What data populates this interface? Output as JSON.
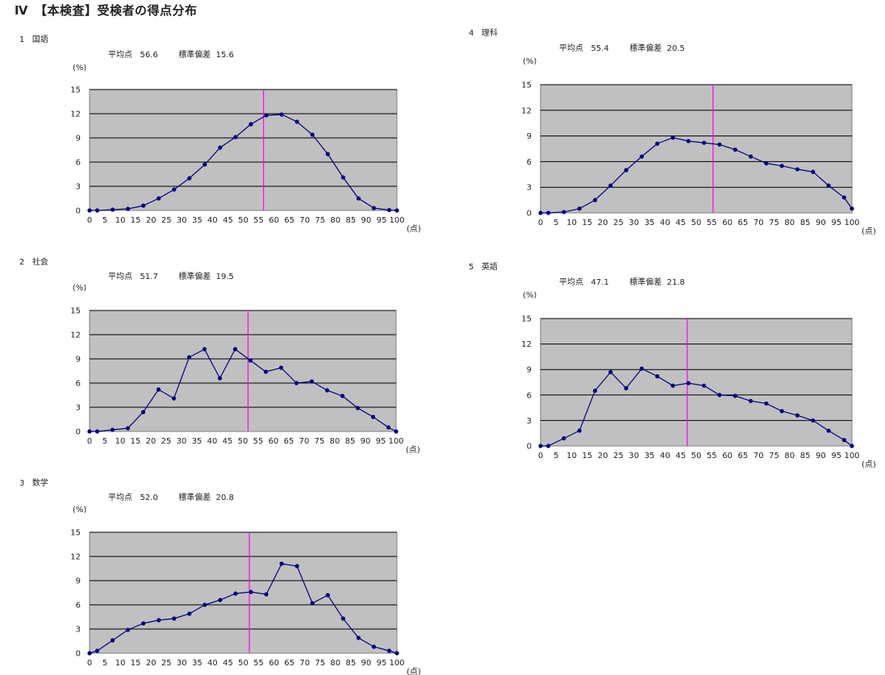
{
  "page_title": "Ⅳ　【本検査】受検者の得点分布",
  "chart_data": [
    {
      "type": "line",
      "number": "1",
      "subject": "国語",
      "average_label": "平均点",
      "average": "56.6",
      "sd_label": "標準偏差",
      "sd": "15.6",
      "ylabel": "(%)",
      "xlabel": "(点)",
      "x": [
        0,
        2.5,
        7.5,
        12.5,
        17.5,
        22.5,
        27.5,
        32.5,
        37.5,
        42.5,
        47.5,
        52.5,
        57.5,
        62.5,
        67.5,
        72.5,
        77.5,
        82.5,
        87.5,
        92.5,
        97.5,
        100
      ],
      "values": [
        0,
        0,
        0.1,
        0.2,
        0.6,
        1.5,
        2.6,
        4.0,
        5.7,
        7.8,
        9.1,
        10.7,
        11.8,
        11.9,
        11.0,
        9.4,
        7.0,
        4.1,
        1.5,
        0.3,
        0.05,
        0
      ],
      "mean_line": 56.6,
      "xlim": [
        0,
        100
      ],
      "ylim": [
        0,
        15
      ],
      "xticks": [
        0,
        5,
        10,
        15,
        20,
        25,
        30,
        35,
        40,
        45,
        50,
        55,
        60,
        65,
        70,
        75,
        80,
        85,
        90,
        95,
        100
      ],
      "yticks": [
        0,
        3,
        6,
        9,
        12,
        15
      ],
      "grid": true,
      "colors": {
        "plot_bg": "#c0c0c0",
        "line": "#000080",
        "mean": "#ff00ff"
      }
    },
    {
      "type": "line",
      "number": "2",
      "subject": "社会",
      "average_label": "平均点",
      "average": "51.7",
      "sd_label": "標準偏差",
      "sd": "19.5",
      "ylabel": "(%)",
      "xlabel": "(点)",
      "x": [
        0,
        2.5,
        7.5,
        12.5,
        17.5,
        22.5,
        27.5,
        32.5,
        37.5,
        42.5,
        47.5,
        52.5,
        57.5,
        62.5,
        67.5,
        72.5,
        77.5,
        82.5,
        87.5,
        92.5,
        97.5,
        100
      ],
      "values": [
        0,
        0,
        0.2,
        0.4,
        2.4,
        5.2,
        4.1,
        9.2,
        10.2,
        6.6,
        10.2,
        8.8,
        7.4,
        7.9,
        6.0,
        6.2,
        5.1,
        4.4,
        2.9,
        1.8,
        0.5,
        0
      ],
      "mean_line": 51.7,
      "xlim": [
        0,
        100
      ],
      "ylim": [
        0,
        15
      ],
      "xticks": [
        0,
        5,
        10,
        15,
        20,
        25,
        30,
        35,
        40,
        45,
        50,
        55,
        60,
        65,
        70,
        75,
        80,
        85,
        90,
        95,
        100
      ],
      "yticks": [
        0,
        3,
        6,
        9,
        12,
        15
      ],
      "grid": true,
      "colors": {
        "plot_bg": "#c0c0c0",
        "line": "#000080",
        "mean": "#ff00ff"
      }
    },
    {
      "type": "line",
      "number": "3",
      "subject": "数学",
      "average_label": "平均点",
      "average": "52.0",
      "sd_label": "標準偏差",
      "sd": "20.8",
      "ylabel": "(%)",
      "xlabel": "(点)",
      "x": [
        0,
        2.5,
        7.5,
        12.5,
        17.5,
        22.5,
        27.5,
        32.5,
        37.5,
        42.5,
        47.5,
        52.5,
        57.5,
        62.5,
        67.5,
        72.5,
        77.5,
        82.5,
        87.5,
        92.5,
        97.5,
        100
      ],
      "values": [
        0,
        0.3,
        1.6,
        2.9,
        3.7,
        4.1,
        4.3,
        4.9,
        6.0,
        6.6,
        7.4,
        7.6,
        7.3,
        11.1,
        10.8,
        6.2,
        7.2,
        4.3,
        1.9,
        0.8,
        0.3,
        0
      ],
      "mean_line": 52.0,
      "xlim": [
        0,
        100
      ],
      "ylim": [
        0,
        15
      ],
      "xticks": [
        0,
        5,
        10,
        15,
        20,
        25,
        30,
        35,
        40,
        45,
        50,
        55,
        60,
        65,
        70,
        75,
        80,
        85,
        90,
        95,
        100
      ],
      "yticks": [
        0,
        3,
        6,
        9,
        12,
        15
      ],
      "grid": true,
      "colors": {
        "plot_bg": "#c0c0c0",
        "line": "#000080",
        "mean": "#ff00ff"
      }
    },
    {
      "type": "line",
      "number": "4",
      "subject": "理科",
      "average_label": "平均点",
      "average": "55.4",
      "sd_label": "標準偏差",
      "sd": "20.5",
      "ylabel": "(%)",
      "xlabel": "(点)",
      "x": [
        0,
        2.5,
        7.5,
        12.5,
        17.5,
        22.5,
        27.5,
        32.5,
        37.5,
        42.5,
        47.5,
        52.5,
        57.5,
        62.5,
        67.5,
        72.5,
        77.5,
        82.5,
        87.5,
        92.5,
        97.5,
        100
      ],
      "values": [
        0,
        0,
        0.1,
        0.5,
        1.5,
        3.2,
        5.0,
        6.6,
        8.1,
        8.8,
        8.4,
        8.2,
        8.0,
        7.4,
        6.6,
        5.8,
        5.5,
        5.1,
        4.8,
        3.2,
        1.8,
        0.5
      ],
      "mean_line": 55.4,
      "xlim": [
        0,
        100
      ],
      "ylim": [
        0,
        15
      ],
      "xticks": [
        0,
        5,
        10,
        15,
        20,
        25,
        30,
        35,
        40,
        45,
        50,
        55,
        60,
        65,
        70,
        75,
        80,
        85,
        90,
        95,
        100
      ],
      "yticks": [
        0,
        3,
        6,
        9,
        12,
        15
      ],
      "grid": true,
      "colors": {
        "plot_bg": "#c0c0c0",
        "line": "#000080",
        "mean": "#ff00ff"
      }
    },
    {
      "type": "line",
      "number": "5",
      "subject": "英語",
      "average_label": "平均点",
      "average": "47.1",
      "sd_label": "標準偏差",
      "sd": "21.8",
      "ylabel": "(%)",
      "xlabel": "(点)",
      "x": [
        0,
        2.5,
        7.5,
        12.5,
        17.5,
        22.5,
        27.5,
        32.5,
        37.5,
        42.5,
        47.5,
        52.5,
        57.5,
        62.5,
        67.5,
        72.5,
        77.5,
        82.5,
        87.5,
        92.5,
        97.5,
        100
      ],
      "values": [
        0,
        0,
        0.9,
        1.8,
        6.5,
        8.7,
        6.8,
        9.1,
        8.2,
        7.1,
        7.4,
        7.1,
        6.0,
        5.9,
        5.3,
        5.0,
        4.1,
        3.6,
        3.0,
        1.8,
        0.7,
        0
      ],
      "mean_line": 47.1,
      "xlim": [
        0,
        100
      ],
      "ylim": [
        0,
        15
      ],
      "xticks": [
        0,
        5,
        10,
        15,
        20,
        25,
        30,
        35,
        40,
        45,
        50,
        55,
        60,
        65,
        70,
        75,
        80,
        85,
        90,
        95,
        100
      ],
      "yticks": [
        0,
        3,
        6,
        9,
        12,
        15
      ],
      "grid": true,
      "colors": {
        "plot_bg": "#c0c0c0",
        "line": "#000080",
        "mean": "#ff00ff"
      }
    }
  ]
}
